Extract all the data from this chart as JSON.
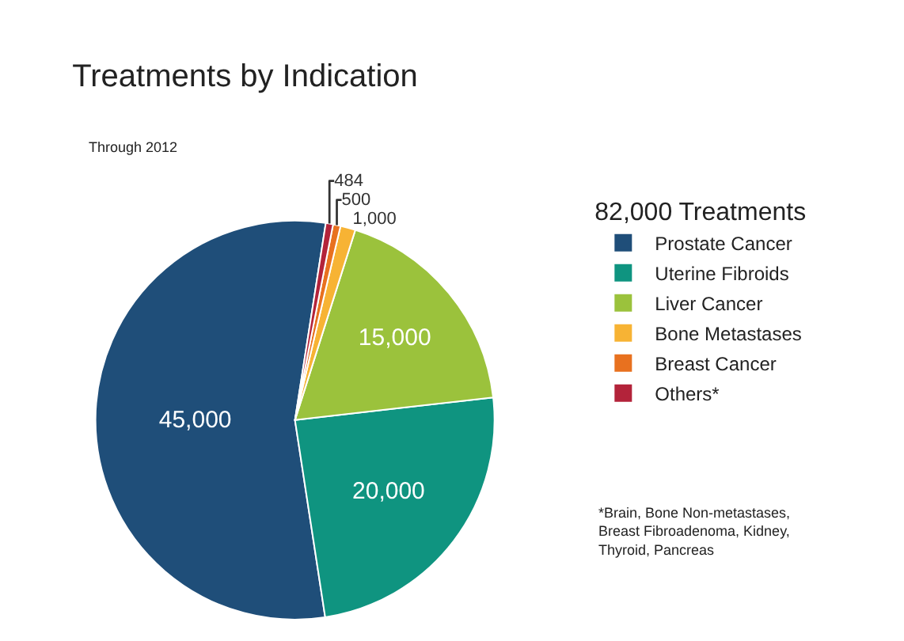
{
  "chart_data": {
    "type": "pie",
    "title": "Treatments by Indication",
    "subtitle": "Through 2012",
    "legend_title": "82,000 Treatments",
    "categories": [
      "Prostate Cancer",
      "Uterine Fibroids",
      "Liver Cancer",
      "Bone Metastases",
      "Breast Cancer",
      "Others*"
    ],
    "values": [
      45000,
      20000,
      15000,
      1000,
      500,
      484
    ],
    "colors": [
      "#1f4e79",
      "#0f9480",
      "#9bc23c",
      "#f7b334",
      "#e8711f",
      "#b3233a"
    ],
    "value_labels": [
      "45,000",
      "20,000",
      "15,000",
      "1,000",
      "500",
      "484"
    ],
    "legend": "right",
    "annotations": [
      "*Brain, Bone Non-metastases, Breast Fibroadenoma, Kidney, Thyroid, Pancreas"
    ]
  }
}
